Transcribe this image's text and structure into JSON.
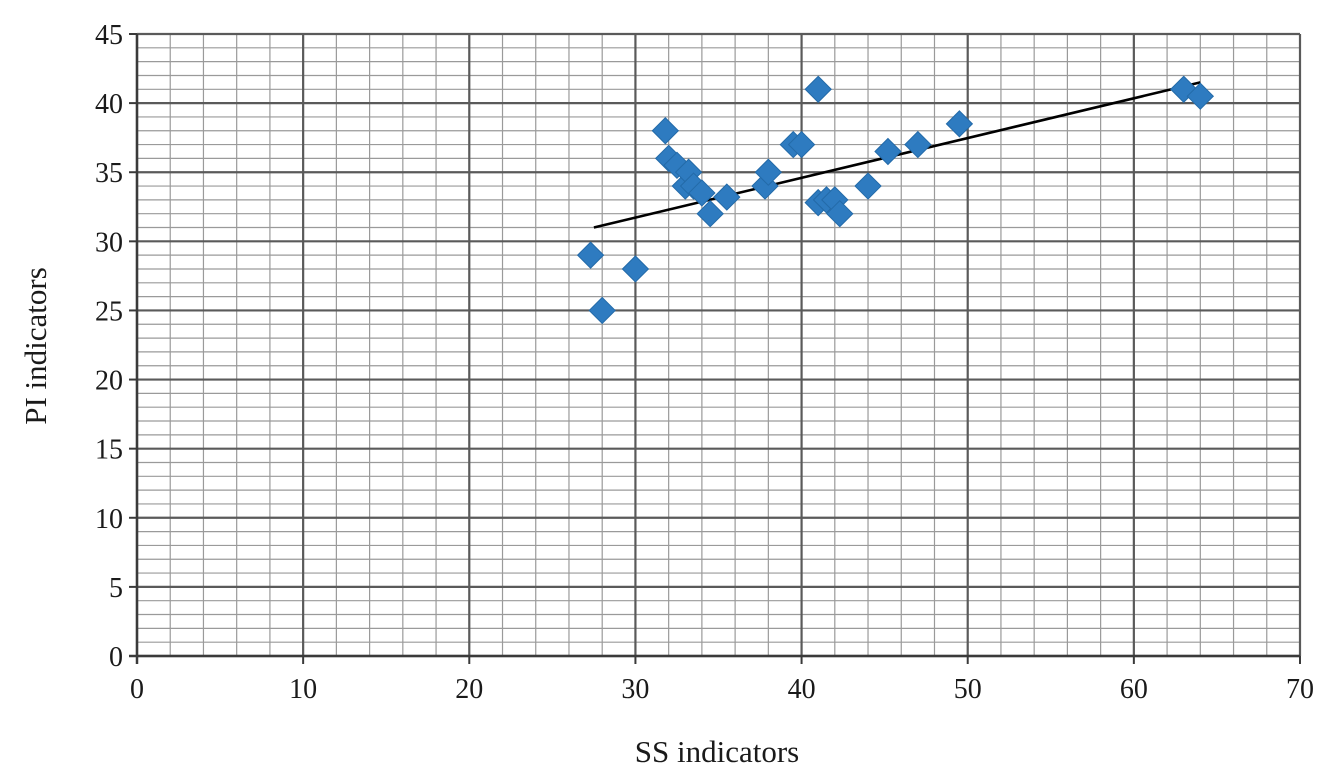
{
  "chart_data": {
    "type": "scatter",
    "title": "",
    "xlabel": "SS indicators",
    "ylabel": "PI indicators",
    "xlim": [
      0,
      70
    ],
    "ylim": [
      0,
      45
    ],
    "x_ticks": [
      "0",
      "10",
      "20",
      "30",
      "40",
      "50",
      "60",
      "70"
    ],
    "y_ticks": [
      "0",
      "5",
      "10",
      "15",
      "20",
      "25",
      "30",
      "35",
      "40",
      "45"
    ],
    "grid": true,
    "legend": "none",
    "marker": "diamond",
    "marker_color": "#2E7BC0",
    "trendline_color": "#000000",
    "series": [
      {
        "x": [
          27.3,
          28.0,
          30.0,
          31.8,
          32.0,
          32.5,
          33.0,
          33.2,
          33.5,
          34.0,
          34.5,
          35.5,
          37.8,
          38.0,
          39.5,
          40.0,
          41.0,
          41.0,
          41.5,
          42.0,
          42.3,
          44.0,
          45.2,
          47.0,
          49.5,
          63.0,
          64.0
        ],
        "y": [
          29.0,
          25.0,
          28.0,
          38.0,
          36.0,
          35.5,
          34.0,
          35.0,
          34.0,
          33.5,
          32.0,
          33.2,
          34.0,
          35.0,
          37.0,
          37.0,
          41.0,
          32.8,
          33.0,
          33.0,
          32.0,
          34.0,
          36.5,
          37.0,
          38.5,
          41.0,
          40.5
        ]
      }
    ],
    "trendline": {
      "type": "linear",
      "x": [
        27.5,
        64.0
      ],
      "y": [
        31.0,
        41.5
      ]
    }
  }
}
